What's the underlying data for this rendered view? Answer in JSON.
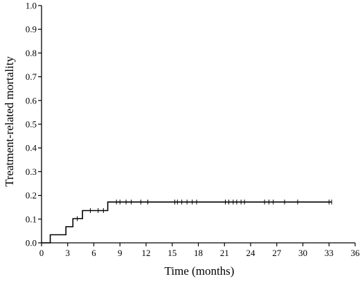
{
  "chart_data": {
    "type": "line",
    "title": "",
    "xlabel": "Time (months)",
    "ylabel": "Treatment-related mortality",
    "xlim": [
      0,
      36
    ],
    "ylim": [
      0,
      1
    ],
    "x_ticks": [
      0,
      3,
      6,
      9,
      12,
      15,
      18,
      21,
      24,
      27,
      30,
      33,
      36
    ],
    "y_ticks": [
      "0.0",
      "0.1",
      "0.2",
      "0.3",
      "0.4",
      "0.5",
      "0.6",
      "0.7",
      "0.8",
      "0.9",
      "1.0"
    ],
    "grid": false,
    "legend": "none",
    "series": [
      {
        "step": "post",
        "color": "#000000",
        "points": [
          [
            0,
            0.0
          ],
          [
            1.0,
            0.0
          ],
          [
            1.0,
            0.034
          ],
          [
            2.8,
            0.034
          ],
          [
            2.8,
            0.068
          ],
          [
            3.6,
            0.068
          ],
          [
            3.6,
            0.102
          ],
          [
            4.7,
            0.102
          ],
          [
            4.7,
            0.136
          ],
          [
            7.6,
            0.136
          ],
          [
            7.6,
            0.172
          ],
          [
            33.3,
            0.172
          ]
        ],
        "censored": [
          4.1,
          5.6,
          6.5,
          7.1,
          8.6,
          9.0,
          9.7,
          10.3,
          11.4,
          12.2,
          15.3,
          15.6,
          16.1,
          16.7,
          17.3,
          17.8,
          21.1,
          21.5,
          22.0,
          22.4,
          22.9,
          23.3,
          25.6,
          26.1,
          26.6,
          27.9,
          29.4,
          33.0,
          33.3
        ]
      }
    ]
  }
}
